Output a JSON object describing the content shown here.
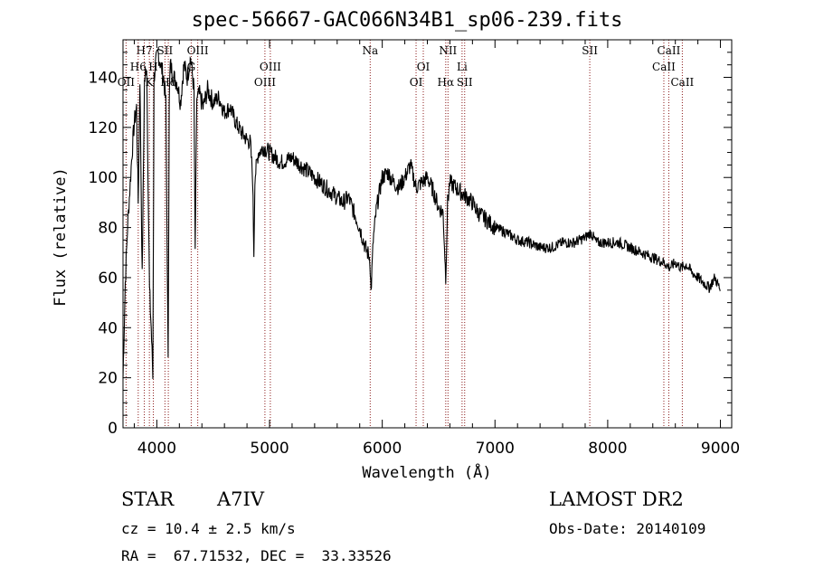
{
  "chart_data": {
    "type": "line",
    "title": "spec-56667-GAC066N34B1_sp06-239.fits",
    "xlabel": "Wavelength (Å)",
    "ylabel": "Flux (relative)",
    "xlim": [
      3700,
      9100
    ],
    "ylim": [
      0,
      155
    ],
    "xticks": [
      4000,
      5000,
      6000,
      7000,
      8000,
      9000
    ],
    "yticks": [
      0,
      20,
      40,
      60,
      80,
      100,
      120,
      140
    ],
    "line_color": "#000000",
    "marker_color": "#8b1a1a",
    "spectrum": {
      "x": [
        3700,
        3720,
        3740,
        3760,
        3780,
        3800,
        3820,
        3835,
        3850,
        3870,
        3890,
        3910,
        3935,
        3950,
        3965,
        3975,
        3990,
        4010,
        4030,
        4060,
        4080,
        4100,
        4110,
        4120,
        4150,
        4180,
        4210,
        4240,
        4270,
        4300,
        4330,
        4340,
        4355,
        4380,
        4410,
        4450,
        4500,
        4550,
        4600,
        4650,
        4700,
        4750,
        4800,
        4830,
        4850,
        4861,
        4870,
        4900,
        4950,
        5000,
        5100,
        5200,
        5300,
        5400,
        5500,
        5600,
        5650,
        5700,
        5800,
        5850,
        5890,
        5900,
        5920,
        5950,
        6000,
        6050,
        6100,
        6150,
        6200,
        6250,
        6300,
        6350,
        6400,
        6450,
        6500,
        6540,
        6563,
        6580,
        6600,
        6650,
        6700,
        6750,
        6800,
        6850,
        6900,
        7000,
        7100,
        7200,
        7300,
        7400,
        7500,
        7600,
        7700,
        7800,
        7850,
        7900,
        8000,
        8100,
        8200,
        8300,
        8400,
        8500,
        8550,
        8600,
        8650,
        8700,
        8750,
        8800,
        8850,
        8900,
        8950,
        8990,
        9000
      ],
      "y": [
        20,
        58,
        80,
        95,
        110,
        122,
        128,
        90,
        140,
        60,
        138,
        145,
        55,
        40,
        20,
        140,
        145,
        150,
        146,
        140,
        130,
        25,
        132,
        145,
        140,
        138,
        130,
        145,
        140,
        148,
        135,
        70,
        132,
        133,
        128,
        135,
        130,
        132,
        126,
        128,
        122,
        118,
        115,
        114,
        100,
        70,
        100,
        110,
        112,
        110,
        106,
        108,
        104,
        100,
        96,
        92,
        90,
        92,
        80,
        72,
        68,
        54,
        75,
        88,
        100,
        102,
        98,
        96,
        100,
        105,
        96,
        98,
        100,
        95,
        88,
        86,
        60,
        90,
        98,
        96,
        94,
        92,
        90,
        86,
        84,
        80,
        78,
        75,
        74,
        72,
        72,
        74,
        74,
        76,
        78,
        74,
        74,
        74,
        72,
        70,
        68,
        66,
        64,
        66,
        64,
        65,
        62,
        60,
        58,
        56,
        60,
        56,
        55
      ]
    },
    "line_markers": [
      {
        "label": "H7",
        "wl": 3889,
        "row": 0
      },
      {
        "label": "H6",
        "wl": 3835,
        "row": 1
      },
      {
        "label": "OII",
        "wl": 3727,
        "row": 2
      },
      {
        "label": "SII",
        "wl": 4072,
        "row": 0
      },
      {
        "label": "H",
        "wl": 3969,
        "row": 1
      },
      {
        "label": "K",
        "wl": 3934,
        "row": 2
      },
      {
        "label": "Hδ",
        "wl": 4102,
        "row": 2
      },
      {
        "label": "OIII",
        "wl": 4363,
        "row": 0
      },
      {
        "label": "G",
        "wl": 4305,
        "row": 1
      },
      {
        "label": "OIII",
        "wl": 5007,
        "row": 1
      },
      {
        "label": "OIII",
        "wl": 4959,
        "row": 2
      },
      {
        "label": "Na",
        "wl": 5893,
        "row": 0
      },
      {
        "label": "OI",
        "wl": 6364,
        "row": 1
      },
      {
        "label": "OI",
        "wl": 6300,
        "row": 2
      },
      {
        "label": "NII",
        "wl": 6583,
        "row": 0
      },
      {
        "label": "Hα",
        "wl": 6563,
        "row": 2
      },
      {
        "label": "Li",
        "wl": 6708,
        "row": 1
      },
      {
        "label": "SII",
        "wl": 6731,
        "row": 2
      },
      {
        "label": "SII",
        "wl": 7841,
        "row": 0
      },
      {
        "label": "CaII",
        "wl": 8542,
        "row": 0
      },
      {
        "label": "CaII",
        "wl": 8498,
        "row": 1
      },
      {
        "label": "CaII",
        "wl": 8662,
        "row": 2
      }
    ]
  },
  "info": {
    "object_type": "STAR",
    "subclass": "A7IV",
    "redshift_line": "cz = 10.4 ± 2.5 km/s",
    "coords_line": "RA =  67.71532, DEC =  33.33526",
    "survey": "LAMOST DR2",
    "obs_date_line": "Obs-Date: 20140109"
  }
}
